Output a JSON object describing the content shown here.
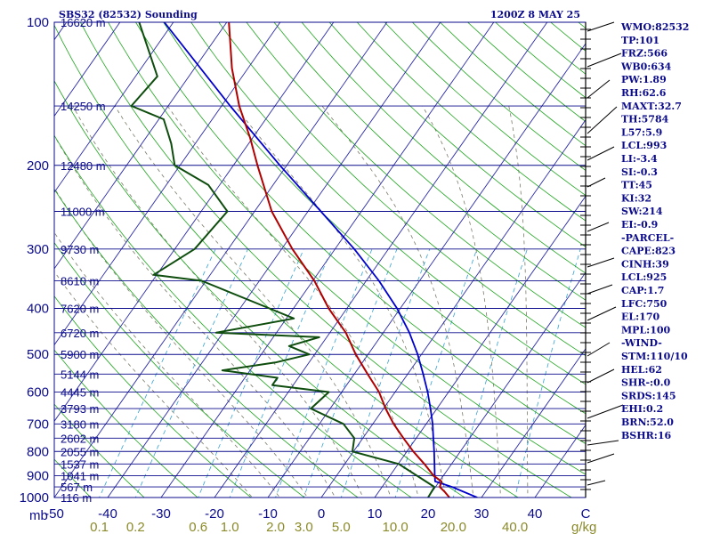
{
  "header": {
    "station": "SBS32 (82532) Sounding",
    "time": "1200Z  8 MAY 25"
  },
  "chart_data": {
    "type": "skew-t",
    "pressure_unit_label": "mb",
    "mixing_ratio_unit_label": "g/kg",
    "pressure_levels": [
      {
        "p": 100,
        "label": "100",
        "height": "16620 m"
      },
      {
        "p": 150,
        "label": "",
        "height": "14250 m"
      },
      {
        "p": 200,
        "label": "200",
        "height": "12480 m"
      },
      {
        "p": 250,
        "label": "",
        "height": "11000 m"
      },
      {
        "p": 300,
        "label": "300",
        "height": "9730 m"
      },
      {
        "p": 350,
        "label": "",
        "height": "8610 m"
      },
      {
        "p": 400,
        "label": "400",
        "height": "7620 m"
      },
      {
        "p": 450,
        "label": "",
        "height": "6720 m"
      },
      {
        "p": 500,
        "label": "500",
        "height": "5900 m"
      },
      {
        "p": 550,
        "label": "",
        "height": "5144 m"
      },
      {
        "p": 600,
        "label": "600",
        "height": "4445 m"
      },
      {
        "p": 650,
        "label": "",
        "height": "3793 m"
      },
      {
        "p": 700,
        "label": "700",
        "height": "3180 m"
      },
      {
        "p": 750,
        "label": "",
        "height": "2602 m"
      },
      {
        "p": 800,
        "label": "800",
        "height": "2055 m"
      },
      {
        "p": 850,
        "label": "",
        "height": "1537 m"
      },
      {
        "p": 900,
        "label": "900",
        "height": "1041 m"
      },
      {
        "p": 950,
        "label": "",
        "height": "567 m"
      },
      {
        "p": 1000,
        "label": "1000",
        "height": "116 m"
      }
    ],
    "temperature_ticks": [
      "-50",
      "-40",
      "-30",
      "-20",
      "-10",
      "0",
      "10",
      "20",
      "30",
      "40",
      "C"
    ],
    "mixing_ratio_ticks": [
      "0.1",
      "0.2",
      "0.6",
      "1.0",
      "2.0",
      "3.0",
      "5.0",
      "10.0",
      "20.0",
      "40.0"
    ],
    "temperature_profile": [
      {
        "p": 1000,
        "t": 24.0
      },
      {
        "p": 975,
        "t": 22.5
      },
      {
        "p": 950,
        "t": 20.8
      },
      {
        "p": 925,
        "t": 20.4
      },
      {
        "p": 900,
        "t": 18.2
      },
      {
        "p": 850,
        "t": 14.9
      },
      {
        "p": 800,
        "t": 11.2
      },
      {
        "p": 750,
        "t": 7.6
      },
      {
        "p": 700,
        "t": 3.9
      },
      {
        "p": 650,
        "t": 0.4
      },
      {
        "p": 600,
        "t": -3.0
      },
      {
        "p": 550,
        "t": -7.5
      },
      {
        "p": 500,
        "t": -12.3
      },
      {
        "p": 450,
        "t": -17.0
      },
      {
        "p": 400,
        "t": -23.4
      },
      {
        "p": 350,
        "t": -29.7
      },
      {
        "p": 300,
        "t": -38.0
      },
      {
        "p": 250,
        "t": -46.8
      },
      {
        "p": 200,
        "t": -55.5
      },
      {
        "p": 175,
        "t": -60.5
      },
      {
        "p": 150,
        "t": -66.7
      },
      {
        "p": 125,
        "t": -73.0
      },
      {
        "p": 100,
        "t": -79.6
      }
    ],
    "dewpoint_profile": [
      {
        "p": 1000,
        "t": 20.0
      },
      {
        "p": 950,
        "t": 19.8
      },
      {
        "p": 900,
        "t": 15.1
      },
      {
        "p": 850,
        "t": 10.1
      },
      {
        "p": 800,
        "t": -0.2
      },
      {
        "p": 750,
        "t": -1.6
      },
      {
        "p": 700,
        "t": -5.5
      },
      {
        "p": 650,
        "t": -13.6
      },
      {
        "p": 600,
        "t": -12.4
      },
      {
        "p": 580,
        "t": -23.9
      },
      {
        "p": 560,
        "t": -23.9
      },
      {
        "p": 540,
        "t": -35.2
      },
      {
        "p": 520,
        "t": -26.3
      },
      {
        "p": 500,
        "t": -21.0
      },
      {
        "p": 480,
        "t": -25.9
      },
      {
        "p": 460,
        "t": -21.4
      },
      {
        "p": 450,
        "t": -41.3
      },
      {
        "p": 420,
        "t": -28.6
      },
      {
        "p": 400,
        "t": -34.5
      },
      {
        "p": 350,
        "t": -50.8
      },
      {
        "p": 340,
        "t": -60.6
      },
      {
        "p": 300,
        "t": -56.3
      },
      {
        "p": 250,
        "t": -55.1
      },
      {
        "p": 220,
        "t": -62.1
      },
      {
        "p": 200,
        "t": -71.0
      },
      {
        "p": 180,
        "t": -74.5
      },
      {
        "p": 160,
        "t": -79.1
      },
      {
        "p": 150,
        "t": -86.9
      },
      {
        "p": 130,
        "t": -85.9
      },
      {
        "p": 100,
        "t": -96.4
      }
    ],
    "parcel_profile": [
      {
        "p": 1000,
        "t": 29.2
      },
      {
        "p": 950,
        "t": 23.1
      },
      {
        "p": 925,
        "t": 19.2
      },
      {
        "p": 900,
        "t": 18.4
      },
      {
        "p": 850,
        "t": 16.8
      },
      {
        "p": 800,
        "t": 15.1
      },
      {
        "p": 750,
        "t": 13.2
      },
      {
        "p": 700,
        "t": 11.2
      },
      {
        "p": 650,
        "t": 8.8
      },
      {
        "p": 600,
        "t": 6.1
      },
      {
        "p": 550,
        "t": 2.9
      },
      {
        "p": 500,
        "t": -0.7
      },
      {
        "p": 450,
        "t": -5.1
      },
      {
        "p": 400,
        "t": -10.6
      },
      {
        "p": 350,
        "t": -17.6
      },
      {
        "p": 300,
        "t": -26.4
      },
      {
        "p": 250,
        "t": -37.6
      },
      {
        "p": 200,
        "t": -51.3
      },
      {
        "p": 150,
        "t": -68.4
      },
      {
        "p": 100,
        "t": -91.7
      }
    ],
    "indices": [
      "WMO:82532",
      "TP:101",
      "FRZ:566",
      "WB0:634",
      "PW:1.89",
      "RH:62.6",
      "MAXT:32.7",
      "TH:5784",
      "L57:5.9",
      "LCL:993",
      "LI:-3.4",
      "SI:-0.3",
      "TT:45",
      "KI:32",
      "SW:214",
      "EI:-0.9",
      "-PARCEL-",
      "CAPE:823",
      "CINH:39",
      "LCL:925",
      "CAP:1.7",
      "LFC:750",
      "EL:170",
      "MPL:100",
      "-WIND-",
      "STM:110/10",
      "HEL:62",
      "SHR-:0.0",
      "SRDS:145",
      "EHI:0.2",
      "BRN:52.0",
      "BSHR:16"
    ],
    "colors": {
      "isobars": "#0b0b8c",
      "isotherms": "#2a2aa8",
      "dry_adiabats": "#1fa51f",
      "moist_adiabats": "#7a7a6a",
      "mixing_ratio": "#36a3d4",
      "temperature": "#b00000",
      "dewpoint": "#0e4d0e",
      "parcel": "#0000cc",
      "text": "#0b0b8c"
    }
  }
}
